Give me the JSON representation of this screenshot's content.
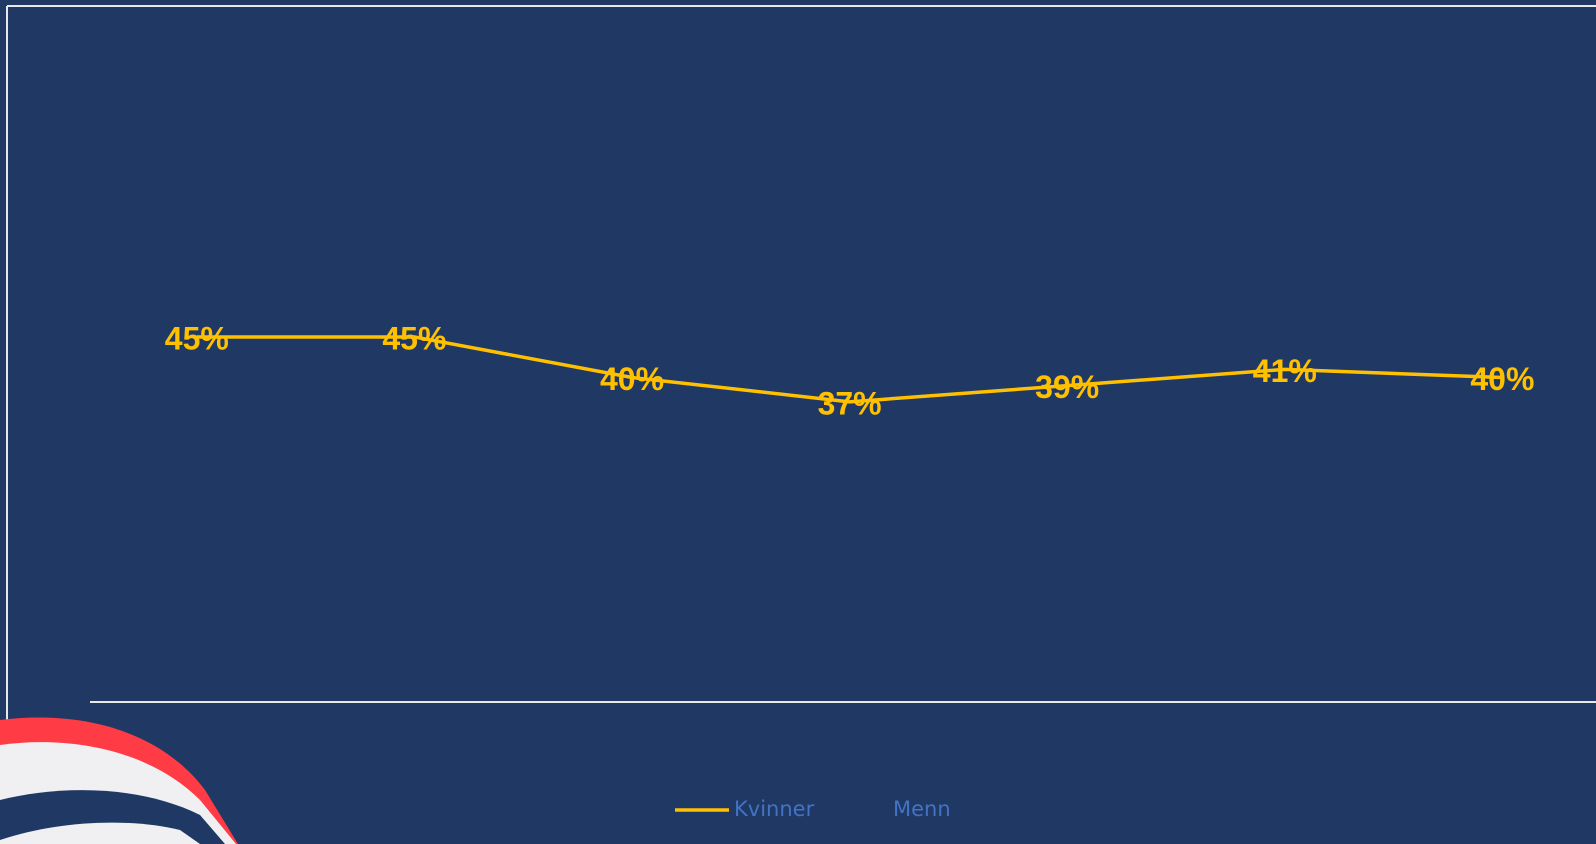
{
  "chart_data": {
    "type": "line",
    "categories": [
      null,
      null,
      null,
      null,
      null,
      null,
      null
    ],
    "series": [
      {
        "name": "Kvinner",
        "color": "#ffc000",
        "values": [
          45,
          45,
          40,
          37,
          39,
          41,
          40
        ],
        "value_labels": [
          "45%",
          "45%",
          "40%",
          "37%",
          "39%",
          "41%",
          "40%"
        ]
      },
      {
        "name": "Menn",
        "color": "#1f3864",
        "values": [
          null,
          null,
          null,
          null,
          null,
          null,
          null
        ]
      }
    ],
    "ylim": [
      0,
      80
    ],
    "grid": false,
    "legend": "bottom"
  }
}
